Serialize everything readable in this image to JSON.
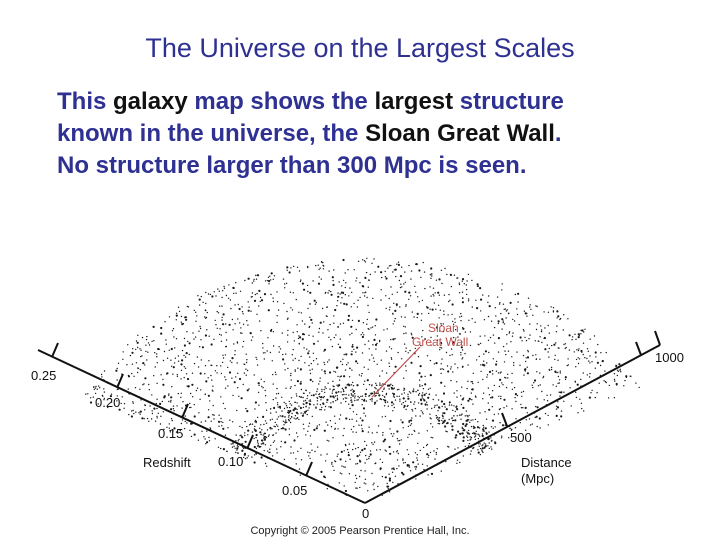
{
  "slide": {
    "title": "The Universe on the Largest Scales",
    "body_lines": [
      [
        {
          "text": "This ",
          "color": "navy"
        },
        {
          "text": "galaxy",
          "color": "black"
        },
        {
          "text": " map shows the ",
          "color": "navy"
        },
        {
          "text": "largest",
          "color": "black"
        },
        {
          "text": " structure",
          "color": "navy"
        }
      ],
      [
        {
          "text": "known in the universe, the ",
          "color": "navy"
        },
        {
          "text": "Sloan Great Wall",
          "color": "black"
        },
        {
          "text": ".",
          "color": "navy"
        }
      ],
      [
        {
          "text": "No structure larger than 300 Mpc is seen.",
          "color": "navy"
        }
      ]
    ]
  },
  "figure": {
    "left_axis": {
      "title": "Redshift",
      "tick_labels": [
        "0.25",
        "0.20",
        "0.15",
        "0.10",
        "0.05"
      ]
    },
    "right_axis": {
      "title_line1": "Distance",
      "title_line2": "(Mpc)",
      "tick_labels": [
        "1000",
        "500"
      ]
    },
    "origin_label": "0",
    "annotation_line1": "Sloan",
    "annotation_line2": "Great Wall",
    "colors": {
      "points": "#1a1a1a",
      "annotation": "#c0504d",
      "axis": "#111111"
    },
    "copyright": "Copyright © 2005 Pearson Prentice Hall, Inc."
  }
}
